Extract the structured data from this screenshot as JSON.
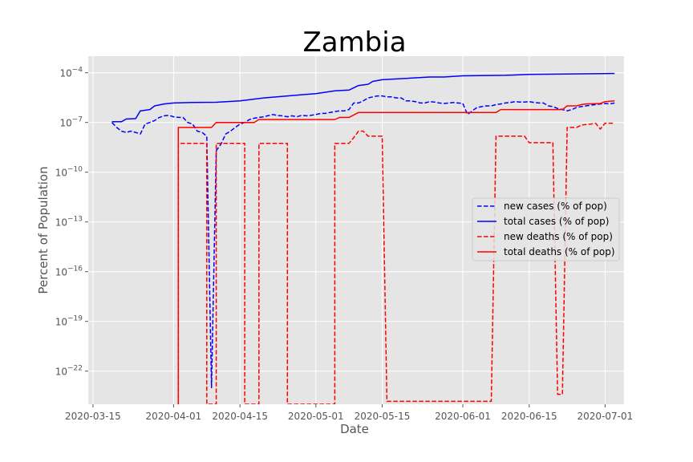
{
  "chart_data": {
    "type": "line",
    "title": "Zambia",
    "xlabel": "Date",
    "ylabel": "Percent of Population",
    "xscale": "date",
    "yscale": "log",
    "xlim": [
      "2020-03-14",
      "2020-07-05"
    ],
    "ylim": [
      1e-24,
      0.001
    ],
    "grid": true,
    "legend_position": "center-right",
    "x_ticks": [
      "2020-03-15",
      "2020-04-01",
      "2020-04-15",
      "2020-05-01",
      "2020-05-15",
      "2020-06-01",
      "2020-06-15",
      "2020-07-01"
    ],
    "y_ticks": [
      {
        "value": 0.0001,
        "mantissa": "10",
        "exponent": "−4"
      },
      {
        "value": 1e-07,
        "mantissa": "10",
        "exponent": "−7"
      },
      {
        "value": 1e-10,
        "mantissa": "10",
        "exponent": "−10"
      },
      {
        "value": 1e-13,
        "mantissa": "10",
        "exponent": "−13"
      },
      {
        "value": 1e-16,
        "mantissa": "10",
        "exponent": "−16"
      },
      {
        "value": 1e-19,
        "mantissa": "10",
        "exponent": "−19"
      },
      {
        "value": 1e-22,
        "mantissa": "10",
        "exponent": "−22"
      }
    ],
    "series": [
      {
        "name": "new cases (% of pop)",
        "color": "#0000ff",
        "dash": "dashed",
        "points": [
          [
            "2020-03-19",
            1e-07
          ],
          [
            "2020-03-20",
            5e-08
          ],
          [
            "2020-03-21",
            3e-08
          ],
          [
            "2020-03-22",
            2.5e-08
          ],
          [
            "2020-03-23",
            3e-08
          ],
          [
            "2020-03-24",
            2.5e-08
          ],
          [
            "2020-03-25",
            2e-08
          ],
          [
            "2020-03-26",
            8e-08
          ],
          [
            "2020-03-27",
            1e-07
          ],
          [
            "2020-03-28",
            1.3e-07
          ],
          [
            "2020-03-29",
            2e-07
          ],
          [
            "2020-03-30",
            2.5e-07
          ],
          [
            "2020-03-31",
            2.7e-07
          ],
          [
            "2020-04-01",
            2.2e-07
          ],
          [
            "2020-04-02",
            2e-07
          ],
          [
            "2020-04-03",
            2e-07
          ],
          [
            "2020-04-04",
            1e-07
          ],
          [
            "2020-04-05",
            8e-08
          ],
          [
            "2020-04-06",
            3e-08
          ],
          [
            "2020-04-07",
            2.5e-08
          ],
          [
            "2020-04-08",
            1.5e-08
          ],
          [
            "2020-04-09",
            1e-23
          ],
          [
            "2020-04-10",
            2e-09
          ],
          [
            "2020-04-11",
            5e-09
          ],
          [
            "2020-04-12",
            2e-08
          ],
          [
            "2020-04-13",
            3e-08
          ],
          [
            "2020-04-14",
            5e-08
          ],
          [
            "2020-04-15",
            8e-08
          ],
          [
            "2020-04-16",
            1e-07
          ],
          [
            "2020-04-17",
            1.5e-07
          ],
          [
            "2020-04-18",
            1.8e-07
          ],
          [
            "2020-04-19",
            2e-07
          ],
          [
            "2020-04-20",
            2.2e-07
          ],
          [
            "2020-04-21",
            2.6e-07
          ],
          [
            "2020-04-22",
            3e-07
          ],
          [
            "2020-04-23",
            2.6e-07
          ],
          [
            "2020-04-24",
            2.5e-07
          ],
          [
            "2020-04-25",
            2.2e-07
          ],
          [
            "2020-04-26",
            2.5e-07
          ],
          [
            "2020-04-27",
            2.2e-07
          ],
          [
            "2020-04-28",
            2.7e-07
          ],
          [
            "2020-04-29",
            2.5e-07
          ],
          [
            "2020-04-30",
            2.7e-07
          ],
          [
            "2020-05-01",
            3e-07
          ],
          [
            "2020-05-02",
            3.5e-07
          ],
          [
            "2020-05-03",
            3.5e-07
          ],
          [
            "2020-05-04",
            4e-07
          ],
          [
            "2020-05-05",
            4.5e-07
          ],
          [
            "2020-05-06",
            5e-07
          ],
          [
            "2020-05-07",
            5e-07
          ],
          [
            "2020-05-08",
            6e-07
          ],
          [
            "2020-05-09",
            1.5e-06
          ],
          [
            "2020-05-10",
            1.5e-06
          ],
          [
            "2020-05-11",
            2e-06
          ],
          [
            "2020-05-12",
            3e-06
          ],
          [
            "2020-05-13",
            3.5e-06
          ],
          [
            "2020-05-14",
            4e-06
          ],
          [
            "2020-05-15",
            4e-06
          ],
          [
            "2020-05-16",
            3.5e-06
          ],
          [
            "2020-05-17",
            3.5e-06
          ],
          [
            "2020-05-18",
            3e-06
          ],
          [
            "2020-05-19",
            3e-06
          ],
          [
            "2020-05-20",
            2e-06
          ],
          [
            "2020-05-21",
            2e-06
          ],
          [
            "2020-05-22",
            1.8e-06
          ],
          [
            "2020-05-23",
            1.5e-06
          ],
          [
            "2020-05-24",
            1.5e-06
          ],
          [
            "2020-05-25",
            1.8e-06
          ],
          [
            "2020-05-26",
            1.7e-06
          ],
          [
            "2020-05-27",
            1.5e-06
          ],
          [
            "2020-05-28",
            1.4e-06
          ],
          [
            "2020-05-29",
            1.5e-06
          ],
          [
            "2020-05-30",
            1.6e-06
          ],
          [
            "2020-05-31",
            1.5e-06
          ],
          [
            "2020-06-01",
            1.4e-06
          ],
          [
            "2020-06-02",
            3e-07
          ],
          [
            "2020-06-03",
            5e-07
          ],
          [
            "2020-06-04",
            8e-07
          ],
          [
            "2020-06-05",
            9e-07
          ],
          [
            "2020-06-06",
            1e-06
          ],
          [
            "2020-06-07",
            1e-06
          ],
          [
            "2020-06-08",
            1.2e-06
          ],
          [
            "2020-06-09",
            1.3e-06
          ],
          [
            "2020-06-10",
            1.5e-06
          ],
          [
            "2020-06-11",
            1.6e-06
          ],
          [
            "2020-06-12",
            1.8e-06
          ],
          [
            "2020-06-13",
            1.7e-06
          ],
          [
            "2020-06-14",
            1.7e-06
          ],
          [
            "2020-06-15",
            1.8e-06
          ],
          [
            "2020-06-16",
            1.6e-06
          ],
          [
            "2020-06-17",
            1.5e-06
          ],
          [
            "2020-06-18",
            1.5e-06
          ],
          [
            "2020-06-19",
            1e-06
          ],
          [
            "2020-06-20",
            9e-07
          ],
          [
            "2020-06-21",
            7e-07
          ],
          [
            "2020-06-22",
            6e-07
          ],
          [
            "2020-06-23",
            5e-07
          ],
          [
            "2020-06-24",
            6e-07
          ],
          [
            "2020-06-25",
            8e-07
          ],
          [
            "2020-06-26",
            9e-07
          ],
          [
            "2020-06-27",
            1e-06
          ],
          [
            "2020-06-28",
            1.1e-06
          ],
          [
            "2020-06-29",
            1.2e-06
          ],
          [
            "2020-06-30",
            1.3e-06
          ],
          [
            "2020-07-01",
            1.4e-06
          ],
          [
            "2020-07-02",
            1.3e-06
          ],
          [
            "2020-07-03",
            1.5e-06
          ]
        ]
      },
      {
        "name": "total cases (% of pop)",
        "color": "#0000ff",
        "dash": "solid",
        "points": [
          [
            "2020-03-19",
            1.1e-07
          ],
          [
            "2020-03-21",
            1.1e-07
          ],
          [
            "2020-03-22",
            1.6e-07
          ],
          [
            "2020-03-24",
            1.7e-07
          ],
          [
            "2020-03-25",
            5e-07
          ],
          [
            "2020-03-27",
            6e-07
          ],
          [
            "2020-03-28",
            1e-06
          ],
          [
            "2020-03-30",
            1.3e-06
          ],
          [
            "2020-04-01",
            1.5e-06
          ],
          [
            "2020-04-05",
            1.6e-06
          ],
          [
            "2020-04-10",
            1.65e-06
          ],
          [
            "2020-04-15",
            2e-06
          ],
          [
            "2020-04-20",
            3e-06
          ],
          [
            "2020-04-25",
            4e-06
          ],
          [
            "2020-05-01",
            5.5e-06
          ],
          [
            "2020-05-05",
            8e-06
          ],
          [
            "2020-05-08",
            9e-06
          ],
          [
            "2020-05-10",
            1.7e-05
          ],
          [
            "2020-05-12",
            2e-05
          ],
          [
            "2020-05-13",
            3e-05
          ],
          [
            "2020-05-15",
            3.8e-05
          ],
          [
            "2020-05-20",
            4.5e-05
          ],
          [
            "2020-05-25",
            5.5e-05
          ],
          [
            "2020-05-28",
            5.5e-05
          ],
          [
            "2020-06-01",
            6.5e-05
          ],
          [
            "2020-06-10",
            7e-05
          ],
          [
            "2020-06-15",
            8e-05
          ],
          [
            "2020-06-25",
            8.5e-05
          ],
          [
            "2020-07-03",
            9e-05
          ]
        ]
      },
      {
        "name": "new deaths (% of pop)",
        "color": "#ff0000",
        "dash": "dashed",
        "points": [
          [
            "2020-04-02",
            1e-24
          ],
          [
            "2020-04-02",
            5.5e-09
          ],
          [
            "2020-04-08",
            5.5e-09
          ],
          [
            "2020-04-08",
            1e-24
          ],
          [
            "2020-04-10",
            1e-24
          ],
          [
            "2020-04-10",
            5.5e-09
          ],
          [
            "2020-04-16",
            5.5e-09
          ],
          [
            "2020-04-16",
            1e-24
          ],
          [
            "2020-04-19",
            1e-24
          ],
          [
            "2020-04-19",
            5.5e-09
          ],
          [
            "2020-04-25",
            5.5e-09
          ],
          [
            "2020-04-25",
            1e-24
          ],
          [
            "2020-05-05",
            1e-24
          ],
          [
            "2020-05-05",
            5.5e-09
          ],
          [
            "2020-05-08",
            5.5e-09
          ],
          [
            "2020-05-09",
            1.2e-08
          ],
          [
            "2020-05-10",
            3e-08
          ],
          [
            "2020-05-11",
            3e-08
          ],
          [
            "2020-05-12",
            1.5e-08
          ],
          [
            "2020-05-15",
            1.5e-08
          ],
          [
            "2020-05-16",
            1.5e-24
          ],
          [
            "2020-06-07",
            1.5e-24
          ],
          [
            "2020-06-08",
            1.5e-08
          ],
          [
            "2020-06-14",
            1.5e-08
          ],
          [
            "2020-06-15",
            6e-09
          ],
          [
            "2020-06-20",
            6e-09
          ],
          [
            "2020-06-21",
            4e-24
          ],
          [
            "2020-06-22",
            4e-24
          ],
          [
            "2020-06-23",
            5e-08
          ],
          [
            "2020-06-25",
            5e-08
          ],
          [
            "2020-06-26",
            7e-08
          ],
          [
            "2020-06-28",
            8e-08
          ],
          [
            "2020-06-29",
            9e-08
          ],
          [
            "2020-06-30",
            4e-08
          ],
          [
            "2020-07-01",
            9e-08
          ],
          [
            "2020-07-03",
            9e-08
          ]
        ]
      },
      {
        "name": "total deaths (% of pop)",
        "color": "#ff0000",
        "dash": "solid",
        "points": [
          [
            "2020-04-02",
            1e-24
          ],
          [
            "2020-04-02",
            5e-08
          ],
          [
            "2020-04-09",
            5e-08
          ],
          [
            "2020-04-10",
            1e-07
          ],
          [
            "2020-04-18",
            1e-07
          ],
          [
            "2020-04-19",
            1.5e-07
          ],
          [
            "2020-05-05",
            1.5e-07
          ],
          [
            "2020-05-06",
            2e-07
          ],
          [
            "2020-05-08",
            2e-07
          ],
          [
            "2020-05-10",
            4e-07
          ],
          [
            "2020-06-08",
            4e-07
          ],
          [
            "2020-06-09",
            6e-07
          ],
          [
            "2020-06-22",
            6e-07
          ],
          [
            "2020-06-23",
            1e-06
          ],
          [
            "2020-06-25",
            1e-06
          ],
          [
            "2020-06-26",
            1.2e-06
          ],
          [
            "2020-06-27",
            1.3e-06
          ],
          [
            "2020-06-30",
            1.4e-06
          ],
          [
            "2020-07-01",
            1.8e-06
          ],
          [
            "2020-07-03",
            2e-06
          ]
        ]
      }
    ]
  }
}
